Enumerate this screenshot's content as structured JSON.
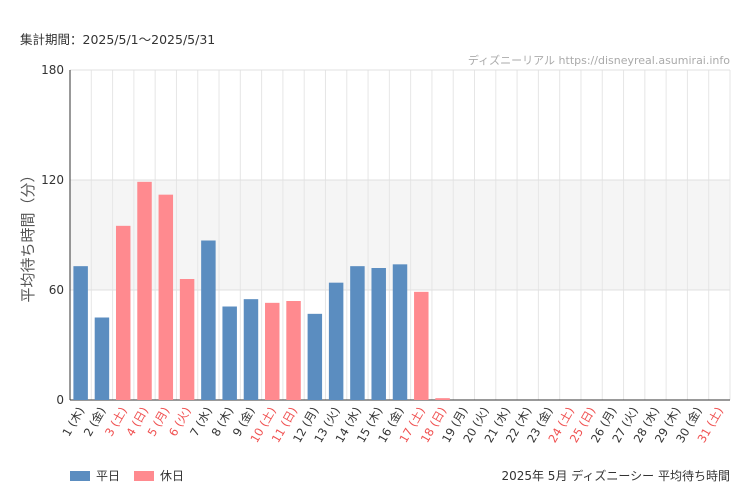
{
  "header": {
    "period": "集計期間：2025/5/1〜2025/5/31",
    "credit": "ディズニーリアル https://disneyreal.asumirai.info"
  },
  "legend": {
    "weekday_label": "平日",
    "holiday_label": "休日"
  },
  "footer": {
    "title": "2025年 5月 ディズニーシー 平均待ち時間"
  },
  "colors": {
    "weekday": "#5b8dc0",
    "holiday": "#ff8a8f",
    "holiday_text": "#f05050",
    "band": "#f5f5f5"
  },
  "chart_data": {
    "type": "bar",
    "ylabel": "平均待ち時間（分）",
    "ylim": [
      0,
      180
    ],
    "yticks": [
      0,
      60,
      120,
      180
    ],
    "shaded_band": [
      60,
      120
    ],
    "categories": [
      "1 (木)",
      "2 (金)",
      "3 (土)",
      "4 (日)",
      "5 (月)",
      "6 (火)",
      "7 (水)",
      "8 (木)",
      "9 (金)",
      "10 (土)",
      "11 (日)",
      "12 (月)",
      "13 (火)",
      "14 (水)",
      "15 (木)",
      "16 (金)",
      "17 (土)",
      "18 (日)",
      "19 (月)",
      "20 (火)",
      "21 (水)",
      "22 (木)",
      "23 (金)",
      "24 (土)",
      "25 (日)",
      "26 (月)",
      "27 (火)",
      "28 (水)",
      "29 (木)",
      "30 (金)",
      "31 (土)"
    ],
    "holiday": [
      false,
      false,
      true,
      true,
      true,
      true,
      false,
      false,
      false,
      true,
      true,
      false,
      false,
      false,
      false,
      false,
      true,
      true,
      false,
      false,
      false,
      false,
      false,
      true,
      true,
      false,
      false,
      false,
      false,
      false,
      true
    ],
    "values": [
      73,
      45,
      95,
      119,
      112,
      66,
      87,
      51,
      55,
      53,
      54,
      47,
      64,
      73,
      72,
      74,
      59,
      1,
      0,
      0,
      0,
      0,
      0,
      0,
      0,
      0,
      0,
      0,
      0,
      0,
      0
    ]
  }
}
